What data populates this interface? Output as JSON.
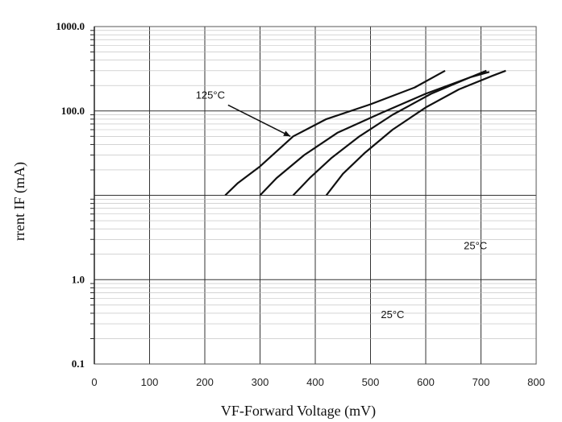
{
  "chart_data": {
    "type": "line",
    "xlabel": "VF-Forward Voltage (mV)",
    "ylabel": "rrent IF (mA)",
    "xlim": [
      0,
      800
    ],
    "ylim": [
      0.1,
      1000
    ],
    "yscale": "log",
    "grid": true,
    "x_ticks": [
      0,
      100,
      200,
      300,
      400,
      500,
      600,
      700,
      800
    ],
    "x_tick_labels": [
      "0",
      "100",
      "200",
      "300",
      "400",
      "500",
      "600",
      "700",
      "800"
    ],
    "y_ticks": [
      1000,
      100,
      1,
      0.1
    ],
    "y_tick_labels": [
      "1000.0",
      "100.0",
      "1.0",
      "0.1"
    ],
    "annotations": [
      {
        "text": "125°C",
        "x": 210,
        "y": 140
      },
      {
        "text": "25°C",
        "x": 690,
        "y": 2.3
      },
      {
        "text": "25°C",
        "x": 540,
        "y": 0.35
      }
    ],
    "series": [
      {
        "x": [
          237,
          260,
          300,
          360,
          420,
          500,
          580,
          635
        ],
        "y": [
          10,
          14,
          22,
          50,
          80,
          120,
          190,
          300
        ]
      },
      {
        "x": [
          300,
          330,
          380,
          440,
          520,
          600,
          680,
          710
        ],
        "y": [
          10,
          16,
          30,
          55,
          95,
          160,
          250,
          300
        ]
      },
      {
        "x": [
          360,
          390,
          430,
          480,
          540,
          610,
          680,
          715
        ],
        "y": [
          10,
          16,
          28,
          50,
          90,
          160,
          250,
          290
        ]
      },
      {
        "x": [
          420,
          450,
          490,
          540,
          600,
          660,
          720,
          745
        ],
        "y": [
          10,
          18,
          32,
          60,
          110,
          180,
          260,
          300
        ]
      }
    ]
  }
}
